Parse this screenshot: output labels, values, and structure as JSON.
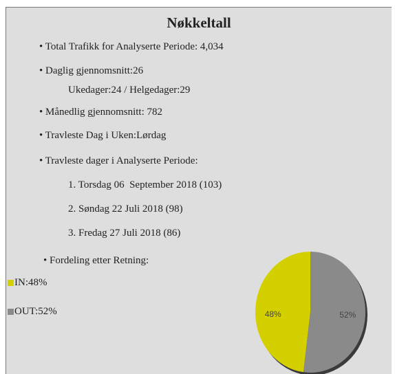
{
  "title": "Nøkkeltall",
  "items": [
    "Total Trafikk for Analyserte Periode: 4,034",
    "Daglig gjennomsnitt:26",
    "Ukedager:24 / Helgedager:29",
    "Månedlig gjennomsnitt: 782",
    "Travleste Dag i Uken:Lørdag",
    "Travleste dager i Analyserte Periode:",
    "1. Torsdag 06  September 2018 (103)",
    "2. Søndag 22 Juli 2018 (98)",
    "3. Fredag 27 Juli 2018 (86)",
    "Fordeling etter Retning:"
  ],
  "chart_data": {
    "type": "pie",
    "categories": [
      "IN",
      "OUT"
    ],
    "values": [
      48,
      52
    ],
    "value_labels": [
      "48%",
      "52%"
    ],
    "colors": [
      "#d4d000",
      "#8a8a8a"
    ],
    "legend": [
      "IN:48%",
      "OUT:52%"
    ]
  }
}
